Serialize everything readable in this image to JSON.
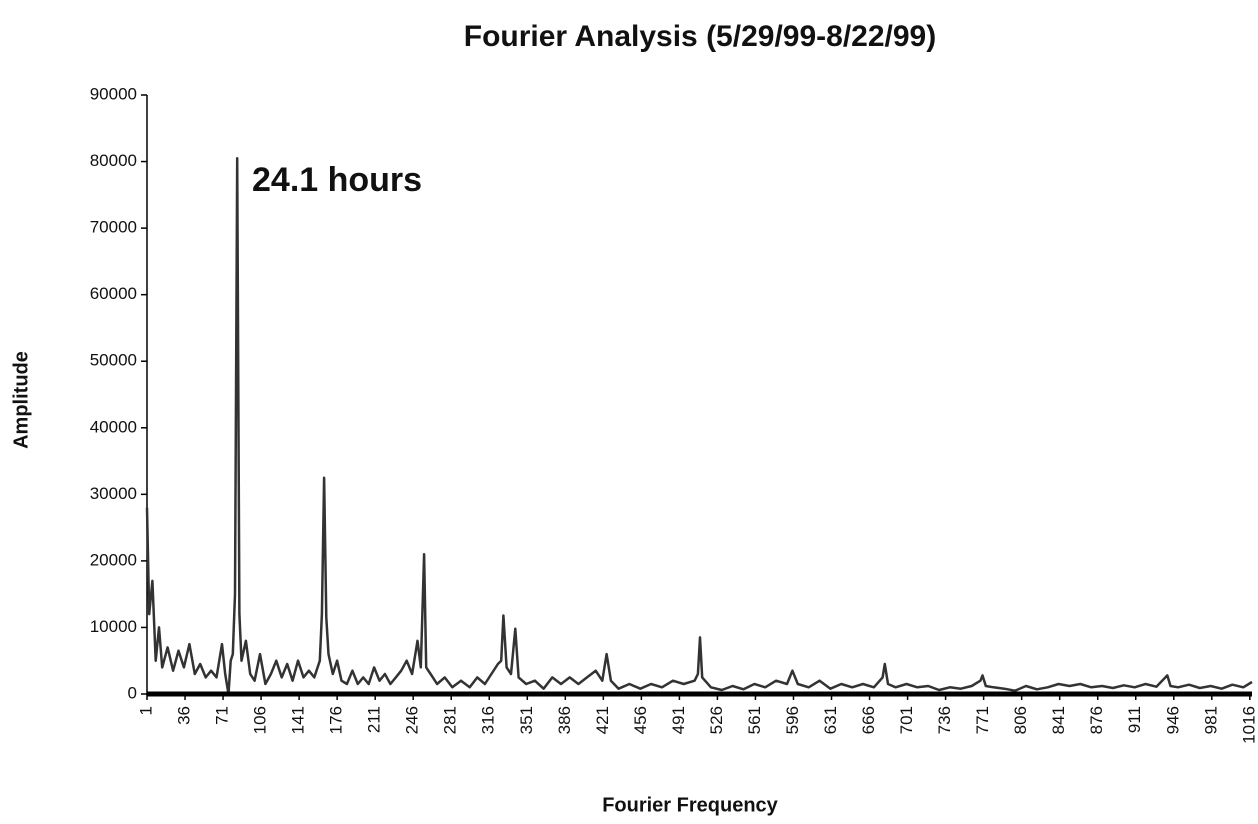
{
  "chart_data": {
    "type": "line",
    "title": "Fourier Analysis (5/29/99-8/22/99)",
    "x_label": "Fourier Frequency",
    "y_label": "Amplitude",
    "annotation": "24.1 hours",
    "color": "#333333",
    "x": [
      1,
      3,
      6,
      9,
      12,
      15,
      20,
      25,
      30,
      35,
      40,
      45,
      50,
      55,
      60,
      65,
      70,
      73,
      76,
      78,
      80,
      82,
      84,
      86,
      88,
      92,
      96,
      100,
      105,
      110,
      115,
      120,
      125,
      130,
      135,
      140,
      145,
      150,
      155,
      160,
      162,
      164,
      166,
      168,
      172,
      176,
      180,
      185,
      190,
      195,
      200,
      205,
      210,
      215,
      220,
      225,
      230,
      235,
      240,
      245,
      250,
      253,
      256,
      258,
      262,
      268,
      275,
      282,
      290,
      298,
      305,
      312,
      318,
      324,
      327,
      329,
      332,
      336,
      340,
      343,
      350,
      358,
      366,
      374,
      382,
      390,
      398,
      406,
      414,
      420,
      424,
      428,
      435,
      445,
      455,
      465,
      475,
      485,
      495,
      505,
      508,
      510,
      512,
      520,
      530,
      540,
      550,
      560,
      570,
      580,
      590,
      595,
      600,
      610,
      620,
      630,
      640,
      650,
      660,
      670,
      678,
      680,
      683,
      690,
      700,
      710,
      720,
      730,
      740,
      750,
      760,
      768,
      770,
      773,
      780,
      790,
      800,
      810,
      820,
      830,
      840,
      850,
      860,
      870,
      880,
      890,
      900,
      910,
      920,
      930,
      940,
      943,
      950,
      960,
      970,
      980,
      990,
      1000,
      1010,
      1018
    ],
    "values": [
      28000,
      12000,
      17000,
      5000,
      10000,
      4000,
      7000,
      3500,
      6500,
      4000,
      7500,
      3000,
      4500,
      2500,
      3500,
      2500,
      7500,
      3000,
      0,
      5000,
      6000,
      15000,
      80500,
      12000,
      5000,
      8000,
      3000,
      2000,
      6000,
      1500,
      3000,
      5000,
      2500,
      4500,
      2000,
      5000,
      2500,
      3500,
      2500,
      5000,
      12000,
      32500,
      11500,
      6000,
      3000,
      5000,
      2000,
      1500,
      3500,
      1500,
      2500,
      1500,
      4000,
      2000,
      3000,
      1500,
      2500,
      3500,
      5000,
      3000,
      8000,
      4000,
      21000,
      4000,
      3000,
      1500,
      2500,
      1000,
      2000,
      1000,
      2500,
      1500,
      3000,
      4500,
      5000,
      11800,
      4000,
      3000,
      9800,
      2500,
      1500,
      2000,
      800,
      2500,
      1500,
      2500,
      1500,
      2500,
      3500,
      2000,
      6000,
      2000,
      800,
      1500,
      800,
      1500,
      1000,
      2000,
      1500,
      2000,
      3000,
      8500,
      2500,
      1000,
      600,
      1200,
      700,
      1500,
      1000,
      2000,
      1500,
      3500,
      1500,
      1000,
      2000,
      800,
      1500,
      1000,
      1500,
      1000,
      2500,
      4500,
      1500,
      1000,
      1500,
      1000,
      1200,
      600,
      1000,
      800,
      1200,
      2000,
      2800,
      1200,
      1000,
      800,
      500,
      1200,
      700,
      1000,
      1500,
      1200,
      1500,
      1000,
      1200,
      900,
      1300,
      1000,
      1500,
      1100,
      2800,
      1200,
      1000,
      1400,
      900,
      1200,
      800,
      1400,
      1000,
      1800
    ],
    "xlim": [
      1,
      1018
    ],
    "xticks": [
      1,
      36,
      71,
      106,
      141,
      176,
      211,
      246,
      281,
      316,
      351,
      386,
      421,
      456,
      491,
      526,
      561,
      596,
      631,
      666,
      701,
      736,
      771,
      806,
      841,
      876,
      911,
      946,
      981,
      1016
    ],
    "ylim": [
      0,
      90000
    ],
    "yticks": [
      0,
      10000,
      20000,
      30000,
      40000,
      50000,
      60000,
      70000,
      80000,
      90000
    ]
  }
}
